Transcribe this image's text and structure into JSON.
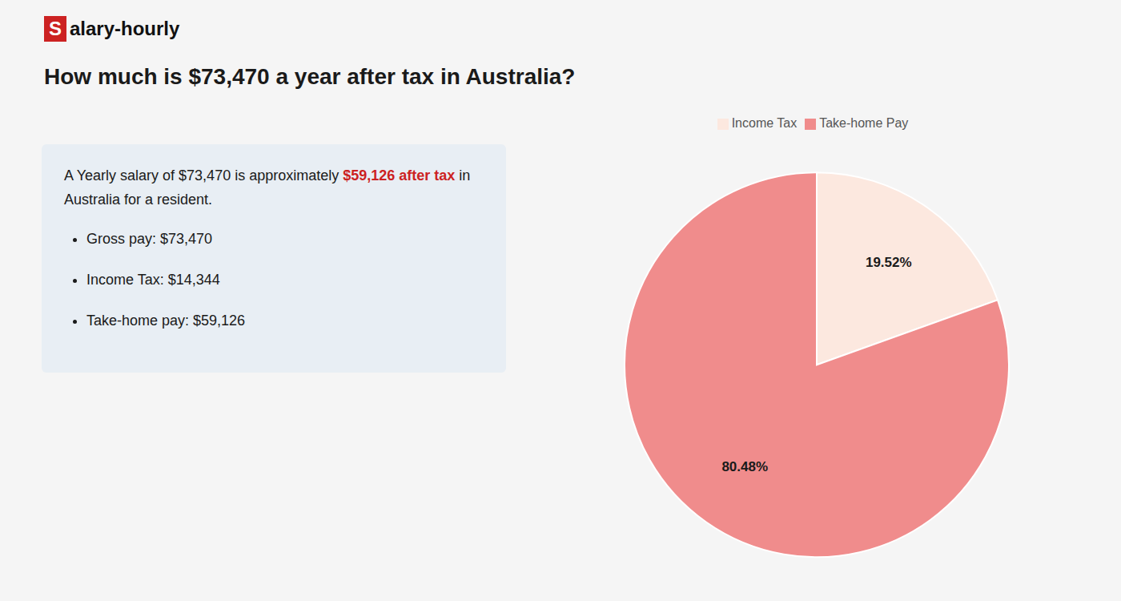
{
  "chart_data": {
    "type": "pie",
    "title": "How much is $73,470 a year after tax in Australia?",
    "annotations": [
      "Salary-hourly",
      "A Yearly salary of $73,470 is approximately ",
      "$59,126 after tax",
      " in Australia for a resident.",
      "Gross pay: $73,470",
      "Income Tax: $14,344",
      "Take-home pay: $59,126"
    ],
    "categories": [
      "Income Tax",
      "Take-home Pay"
    ],
    "values": [
      19.52,
      80.48
    ],
    "value_labels": [
      "19.52%",
      "80.48%"
    ],
    "colors": [
      "#fce8df",
      "#f08c8c"
    ],
    "data_labels": true,
    "legend": "top"
  }
}
